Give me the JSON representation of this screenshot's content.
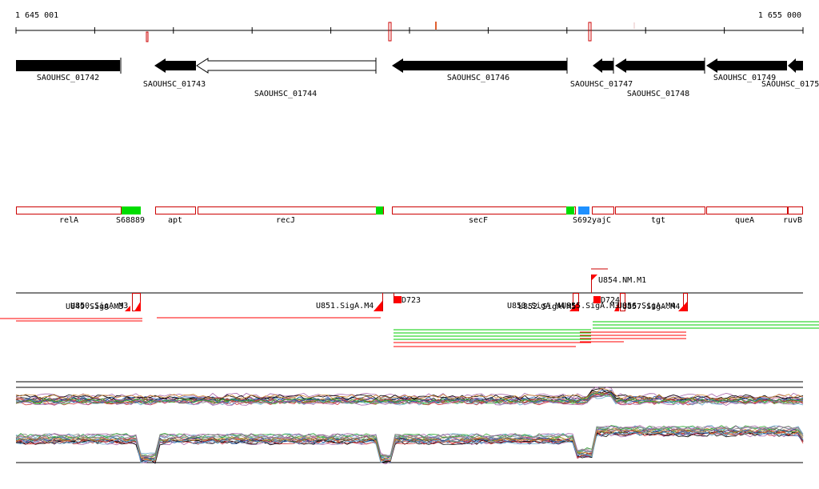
{
  "ruler": {
    "start_label": "1 645 001",
    "end_label": "1 655 000"
  },
  "genes": [
    {
      "name": "SAOUHSC_01742"
    },
    {
      "name": "SAOUHSC_01743"
    },
    {
      "name": "SAOUHSC_01744"
    },
    {
      "name": "SAOUHSC_01746"
    },
    {
      "name": "SAOUHSC_01747"
    },
    {
      "name": "SAOUHSC_01748"
    },
    {
      "name": "SAOUHSC_01749"
    },
    {
      "name": "SAOUHSC_0175"
    }
  ],
  "annotations": [
    {
      "name": "relA"
    },
    {
      "name": "S688"
    },
    {
      "name": "89"
    },
    {
      "name": "apt"
    },
    {
      "name": "recJ"
    },
    {
      "name": "secF"
    },
    {
      "name": "S692"
    },
    {
      "name": "yajC"
    },
    {
      "name": "tgt"
    },
    {
      "name": "queA"
    },
    {
      "name": "ruvB"
    }
  ],
  "features": [
    {
      "name": "U850.SigA.M3"
    },
    {
      "name": "U849.SigA.M3"
    },
    {
      "name": "U851.SigA.M4"
    },
    {
      "name": "D723"
    },
    {
      "name": "U854.NM.M1"
    },
    {
      "name": "D724"
    },
    {
      "name": "U853.SigA.M4"
    },
    {
      "name": "U852.SigA.M5"
    },
    {
      "name": "U855.SigA.M3"
    },
    {
      "name": "U856.SigA.M4"
    },
    {
      "name": "U857.SigA.M4"
    }
  ],
  "colors": {
    "gene": "#000000",
    "annotation_outline": "#cc0000",
    "feature": "#ff0000",
    "green": "#00cc00",
    "blue": "#1e90ff"
  }
}
